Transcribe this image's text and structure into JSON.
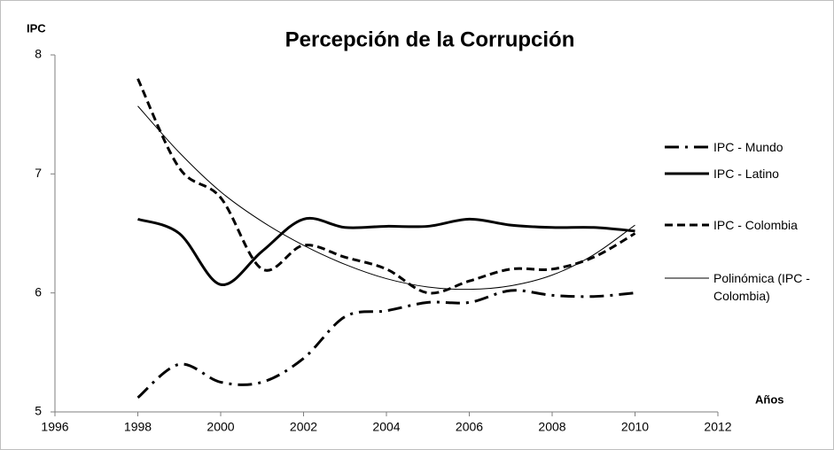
{
  "chart_data": {
    "type": "line",
    "title": "Percepción de la Corrupción",
    "y_label": "IPC",
    "x_label": "Años",
    "x": [
      1998,
      1999,
      2000,
      2001,
      2002,
      2003,
      2004,
      2005,
      2006,
      2007,
      2008,
      2009,
      2010
    ],
    "series": [
      {
        "name": "IPC - Mundo",
        "color": "#000000",
        "style": "dash-dot",
        "values": [
          5.12,
          5.4,
          5.25,
          5.25,
          5.45,
          5.8,
          5.85,
          5.92,
          5.92,
          6.02,
          5.98,
          5.97,
          6.0
        ]
      },
      {
        "name": "IPC - Latino",
        "color": "#000000",
        "style": "solid",
        "values": [
          6.62,
          6.5,
          6.07,
          6.35,
          6.62,
          6.55,
          6.56,
          6.56,
          6.62,
          6.57,
          6.55,
          6.55,
          6.52
        ]
      },
      {
        "name": "IPC - Colombia",
        "color": "#000000",
        "style": "dashed",
        "values": [
          7.8,
          7.05,
          6.8,
          6.2,
          6.4,
          6.3,
          6.2,
          6.0,
          6.1,
          6.2,
          6.2,
          6.3,
          6.5
        ]
      },
      {
        "name": "Polinómica (IPC - Colombia)",
        "color": "#000000",
        "style": "thin",
        "values": [
          7.57,
          7.18,
          6.85,
          6.6,
          6.4,
          6.24,
          6.12,
          6.05,
          6.03,
          6.06,
          6.15,
          6.32,
          6.57
        ]
      }
    ],
    "xlim": [
      1996,
      2012
    ],
    "xticks": [
      1996,
      1998,
      2000,
      2002,
      2004,
      2006,
      2008,
      2010,
      2012
    ],
    "ylim": [
      5,
      8
    ],
    "yticks": [
      5,
      6,
      7,
      8
    ],
    "grid": false,
    "legend": "right"
  }
}
